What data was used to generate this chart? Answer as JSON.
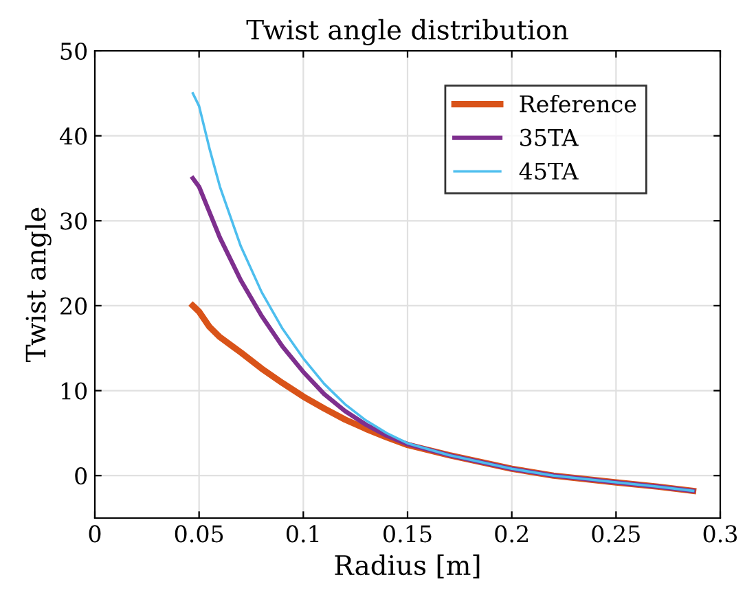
{
  "chart_data": {
    "type": "line",
    "title": "Twist angle distribution",
    "xlabel": "Radius [m]",
    "ylabel": "Twist angle",
    "xlim": [
      0,
      0.3
    ],
    "xticks": [
      0,
      0.05,
      0.1,
      0.15,
      0.2,
      0.25,
      0.3
    ],
    "ylim": [
      -5,
      50
    ],
    "yticks": [
      0,
      10,
      20,
      30,
      40,
      50
    ],
    "grid": true,
    "legend": "top right",
    "series": [
      {
        "name": "Reference",
        "color": "#d95319",
        "x": [
          0.047,
          0.05,
          0.055,
          0.06,
          0.07,
          0.08,
          0.09,
          0.1,
          0.11,
          0.12,
          0.13,
          0.14,
          0.15,
          0.17,
          0.2,
          0.22,
          0.25,
          0.27,
          0.287
        ],
        "values": [
          20,
          19.3,
          17.5,
          16.3,
          14.5,
          12.6,
          10.9,
          9.3,
          7.9,
          6.6,
          5.5,
          4.5,
          3.6,
          2.4,
          0.8,
          0,
          -0.8,
          -1.3,
          -1.8
        ]
      },
      {
        "name": "35TA",
        "color": "#7e2f8e",
        "x": [
          0.047,
          0.05,
          0.055,
          0.06,
          0.07,
          0.08,
          0.09,
          0.1,
          0.11,
          0.12,
          0.13,
          0.14,
          0.15,
          0.17,
          0.2,
          0.22,
          0.25,
          0.27,
          0.287
        ],
        "values": [
          35,
          34,
          31,
          28,
          23,
          18.8,
          15.2,
          12.2,
          9.6,
          7.6,
          6,
          4.7,
          3.7,
          2.4,
          0.8,
          0,
          -0.8,
          -1.3,
          -1.8
        ]
      },
      {
        "name": "45TA",
        "color": "#4dbeee",
        "x": [
          0.047,
          0.05,
          0.055,
          0.06,
          0.07,
          0.08,
          0.09,
          0.1,
          0.11,
          0.12,
          0.13,
          0.14,
          0.15,
          0.17,
          0.2,
          0.22,
          0.25,
          0.27,
          0.287
        ],
        "values": [
          45,
          43.5,
          38.5,
          34,
          27,
          21.6,
          17.3,
          13.8,
          10.8,
          8.4,
          6.5,
          5,
          3.8,
          2.4,
          0.8,
          0,
          -0.8,
          -1.3,
          -1.8
        ]
      }
    ]
  }
}
